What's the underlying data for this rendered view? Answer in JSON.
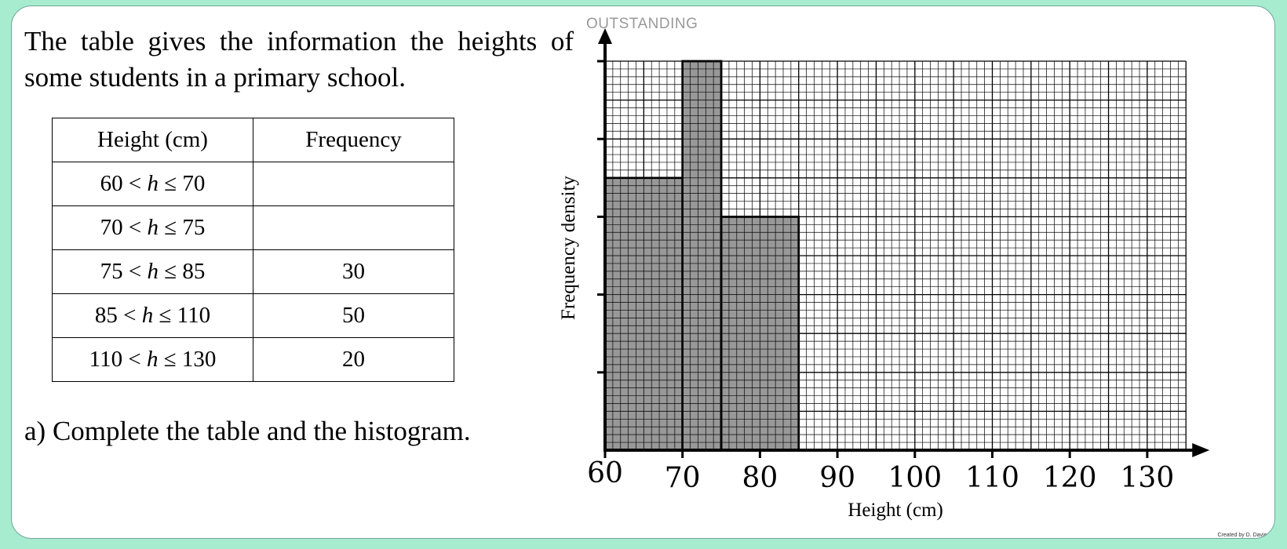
{
  "header_tag": "OUTSTANDING",
  "question": "The table gives the information the heights of some students in a primary school.",
  "table": {
    "headers": [
      "Height (cm)",
      "Frequency"
    ],
    "rows": [
      {
        "lower": "60",
        "var": "h",
        "upper": "70",
        "frequency": ""
      },
      {
        "lower": "70",
        "var": "h",
        "upper": "75",
        "frequency": ""
      },
      {
        "lower": "75",
        "var": "h",
        "upper": "85",
        "frequency": "30"
      },
      {
        "lower": "85",
        "var": "h",
        "upper": "110",
        "frequency": "50"
      },
      {
        "lower": "110",
        "var": "h",
        "upper": "130",
        "frequency": "20"
      }
    ]
  },
  "part_a": "a) Complete the table and the histogram.",
  "credit": "Created by D. Davies",
  "chart_data": {
    "type": "bar",
    "subtype": "histogram",
    "xlabel": "Height (cm)",
    "ylabel": "Frequency density",
    "x_ticks": [
      60,
      70,
      80,
      90,
      100,
      110,
      120,
      130
    ],
    "xlim": [
      60,
      136
    ],
    "ylim": [
      0,
      5
    ],
    "y_ticks_unlabeled": [
      1,
      2,
      3,
      4,
      5
    ],
    "bars": [
      {
        "from": 60,
        "to": 70,
        "density": 3.5
      },
      {
        "from": 70,
        "to": 75,
        "density": 5
      },
      {
        "from": 75,
        "to": 85,
        "density": 3
      }
    ],
    "grid": true,
    "bar_color": "#8a8a8a",
    "grid_color": "#000000"
  }
}
